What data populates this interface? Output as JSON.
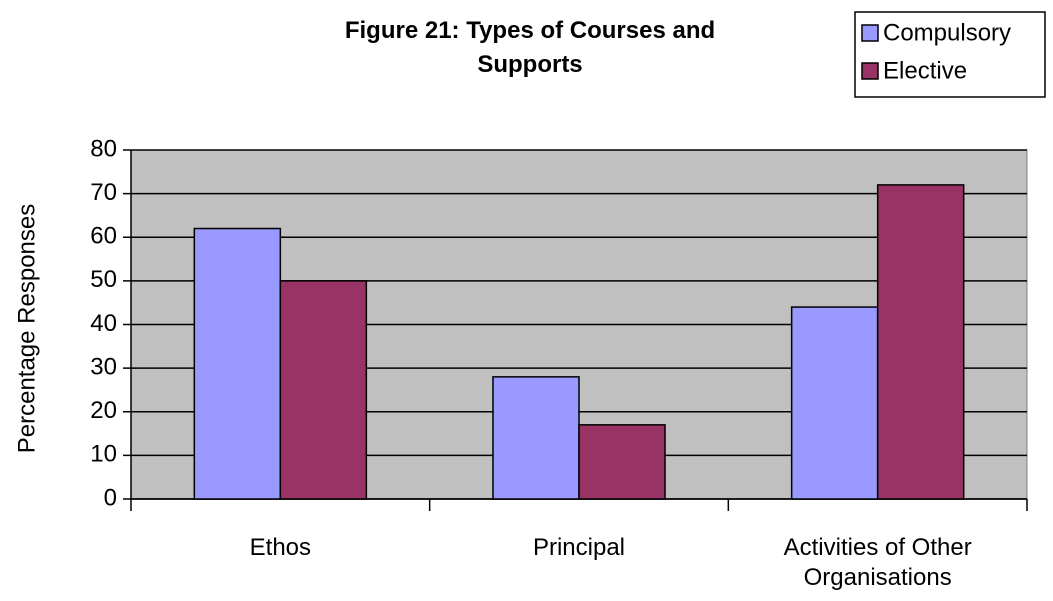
{
  "chart_data": {
    "type": "bar",
    "title": "Figure 21: Types of Courses and Supports",
    "y_label": "Percentage Responses",
    "categories": [
      "Ethos",
      "Principal",
      "Activities of Other Organisations"
    ],
    "series": [
      {
        "name": "Compulsory",
        "color": "#9999ff",
        "values": [
          62,
          28,
          44
        ]
      },
      {
        "name": "Elective",
        "color": "#993366",
        "values": [
          50,
          17,
          72
        ]
      }
    ],
    "ylim": [
      0,
      80
    ],
    "yticks": [
      0,
      10,
      20,
      30,
      40,
      50,
      60,
      70,
      80
    ],
    "grid": true,
    "plot_background": "#c0c0c0",
    "legend": "top-right"
  }
}
